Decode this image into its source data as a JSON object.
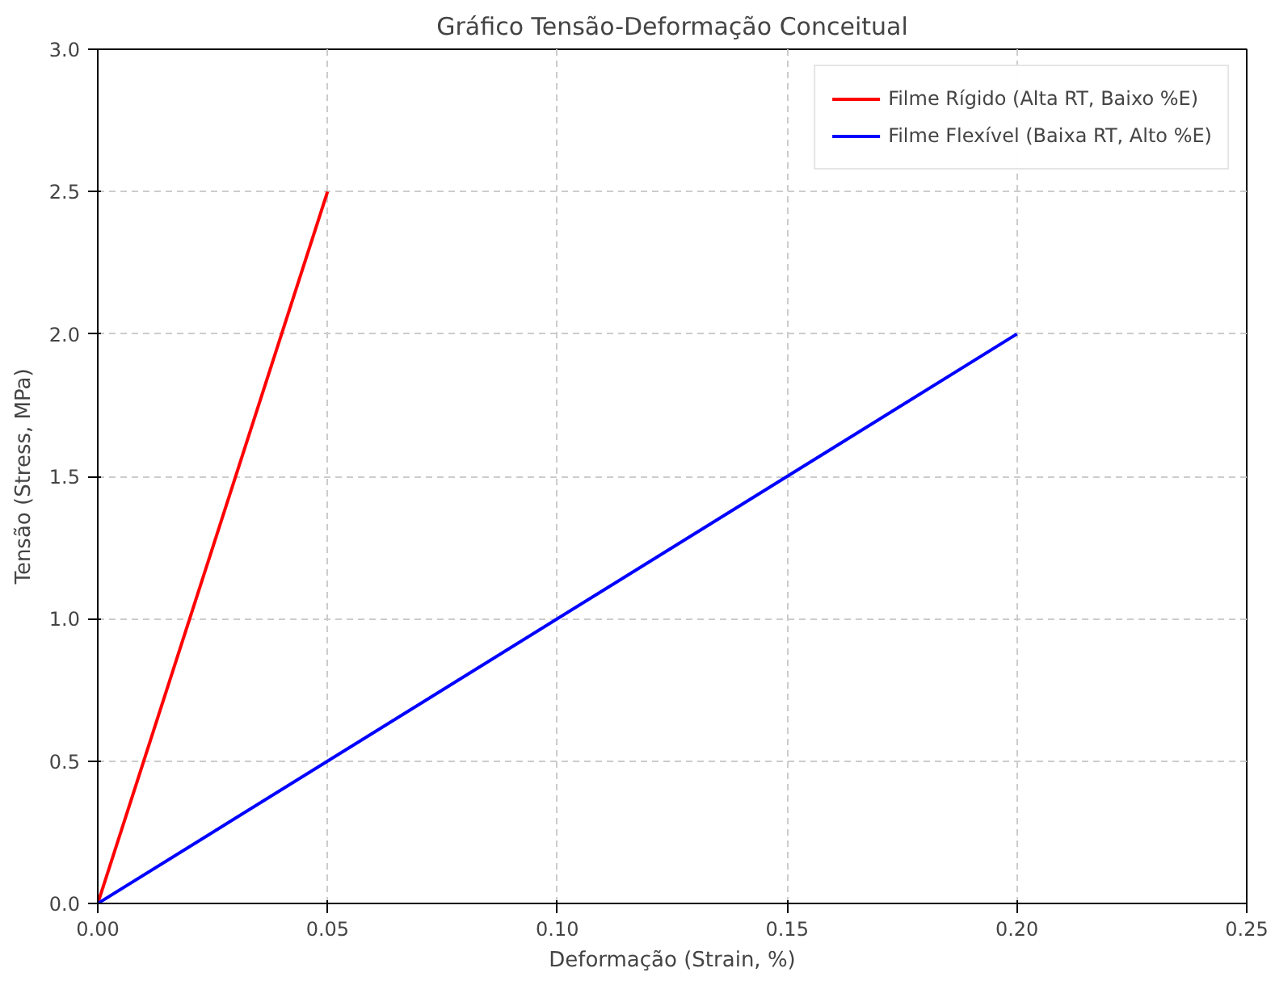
{
  "chart_data": {
    "type": "line",
    "title": "Gráfico Tensão-Deformação Conceitual",
    "xlabel": "Deformação (Strain, %)",
    "ylabel": "Tensão (Stress, MPa)",
    "series": [
      {
        "name": "Filme Rígido (Alta RT, Baixo %E)",
        "color": "#ff0000",
        "x": [
          0,
          0.05
        ],
        "values": [
          0,
          2.5
        ]
      },
      {
        "name": "Filme Flexível (Baixa RT, Alto %E)",
        "color": "#0000ff",
        "x": [
          0,
          0.2
        ],
        "values": [
          0,
          2.0
        ]
      }
    ],
    "xlim": [
      0,
      0.25
    ],
    "ylim": [
      0,
      3
    ],
    "xticks": [
      {
        "value": 0,
        "label": "0.00"
      },
      {
        "value": 0.05,
        "label": "0.05"
      },
      {
        "value": 0.1,
        "label": "0.10"
      },
      {
        "value": 0.15,
        "label": "0.15"
      },
      {
        "value": 0.2,
        "label": "0.20"
      },
      {
        "value": 0.25,
        "label": "0.25"
      }
    ],
    "yticks": [
      {
        "value": 0,
        "label": "0.0"
      },
      {
        "value": 0.5,
        "label": "0.5"
      },
      {
        "value": 1,
        "label": "1.0"
      },
      {
        "value": 1.5,
        "label": "1.5"
      },
      {
        "value": 2,
        "label": "2.0"
      },
      {
        "value": 2.5,
        "label": "2.5"
      },
      {
        "value": 3,
        "label": "3.0"
      }
    ],
    "grid": true,
    "legend": "top right",
    "line_style": "solid"
  }
}
